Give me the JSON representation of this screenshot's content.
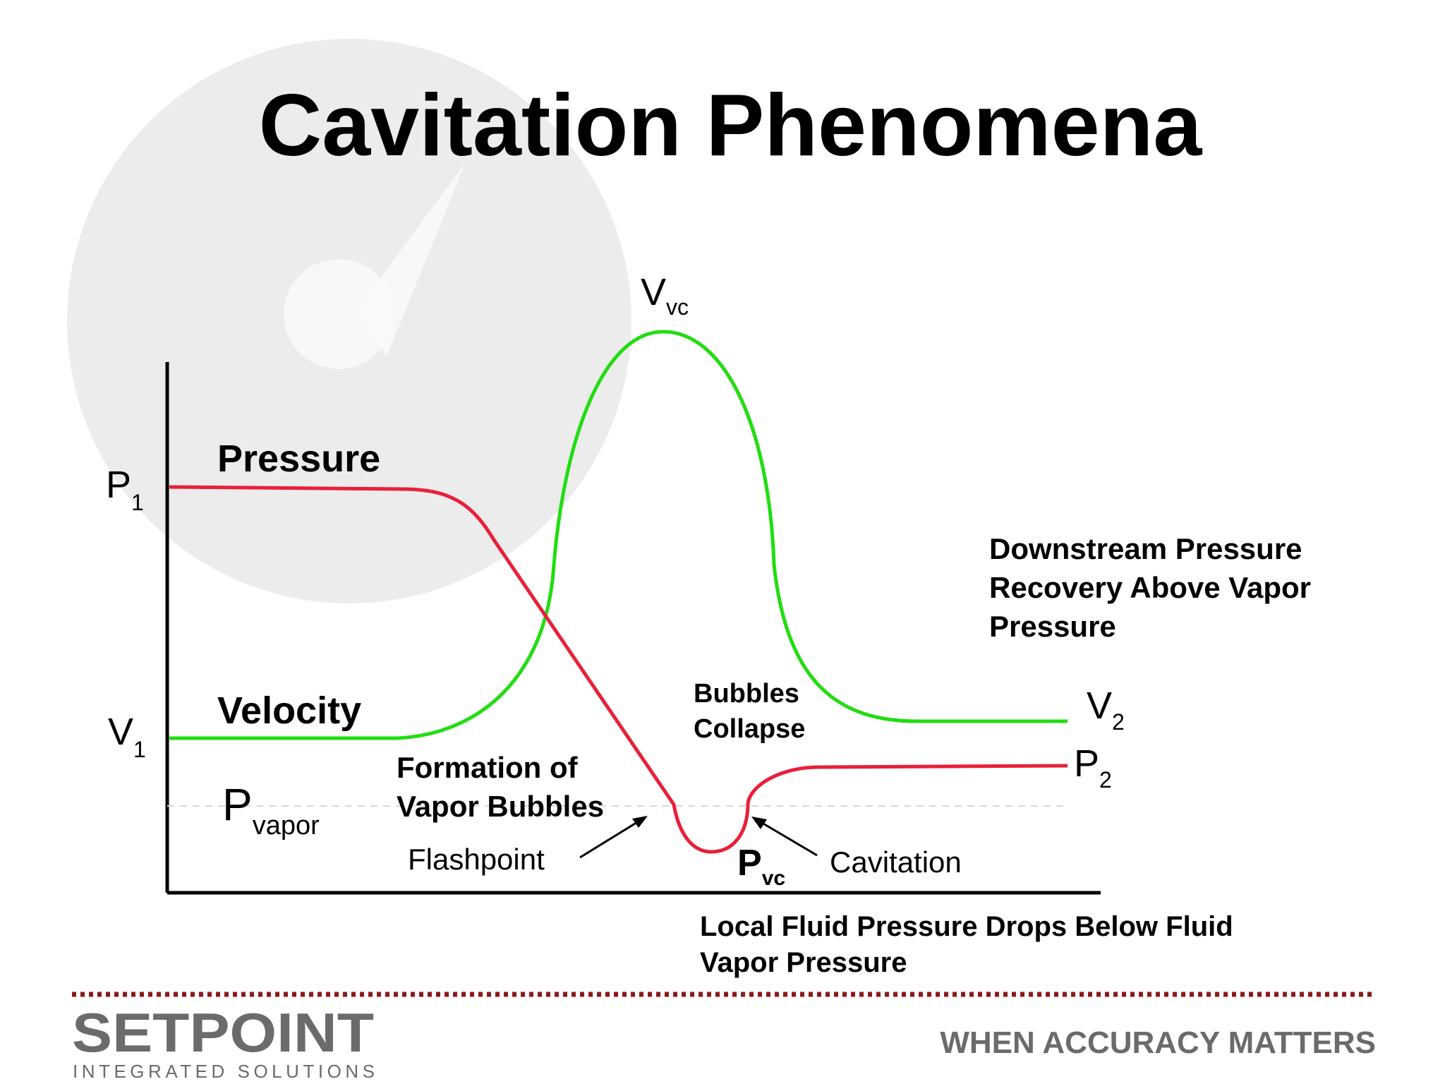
{
  "title": "Cavitation Phenomena",
  "axis_labels": {
    "p1_main": "P",
    "p1_sub": "1",
    "v1_main": "V",
    "v1_sub": "1",
    "pvapor_main": "P",
    "pvapor_sub": "vapor",
    "vvc_main": "V",
    "vvc_sub": "vc",
    "v2_main": "V",
    "v2_sub": "2",
    "p2_main": "P",
    "p2_sub": "2",
    "pvc_main": "P",
    "pvc_sub": "vc"
  },
  "series_labels": {
    "pressure": "Pressure",
    "velocity": "Velocity"
  },
  "annotations": {
    "formation_line1": "Formation of",
    "formation_line2": "Vapor Bubbles",
    "flashpoint": "Flashpoint",
    "bubbles_line1": "Bubbles",
    "bubbles_line2": "Collapse",
    "cavitation": "Cavitation",
    "downstream_line1": "Downstream Pressure",
    "downstream_line2": "Recovery Above Vapor",
    "downstream_line3": "Pressure",
    "local_line1": "Local Fluid Pressure Drops Below Fluid",
    "local_line2": "Vapor Pressure"
  },
  "footer": {
    "logo_word": "SETPOINT",
    "logo_tagline": "INTEGRATED SOLUTIONS",
    "slogan": "WHEN ACCURACY MATTERS"
  },
  "colors": {
    "pressure": "#e8203a",
    "velocity": "#22dd11",
    "axis": "#000000",
    "footer_divider": "#8b1a1a",
    "logo_gray": "#6b6b6b",
    "watermark": "#ececec"
  }
}
